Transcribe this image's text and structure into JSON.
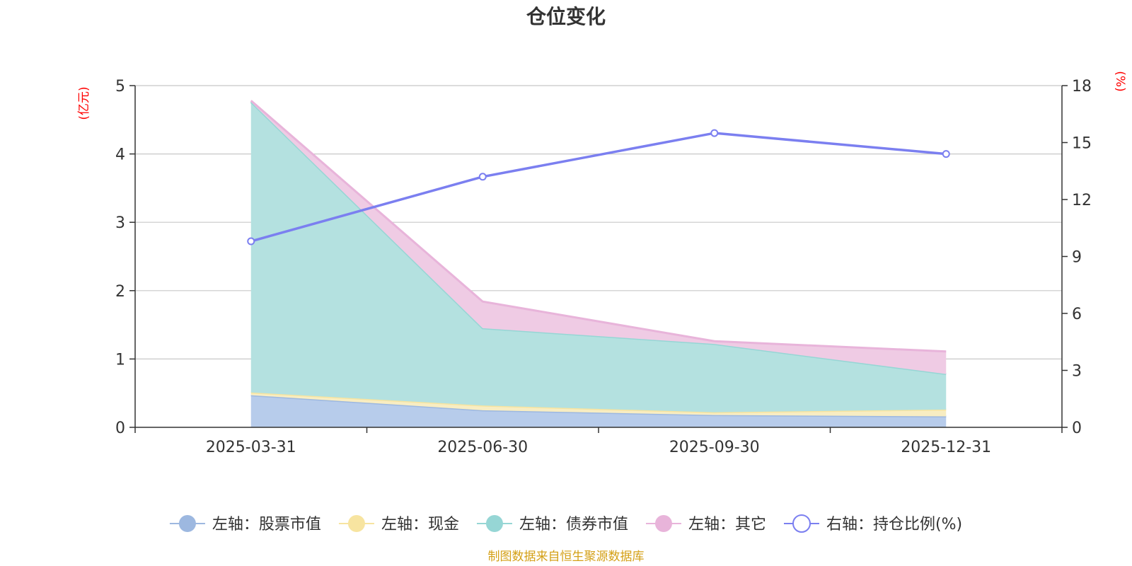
{
  "chart_data": {
    "type": "area",
    "title": "仓位变化",
    "x": [
      "2025-03-31",
      "2025-06-30",
      "2025-09-30",
      "2025-12-31"
    ],
    "left_axis": {
      "unit_label": "(亿元)",
      "ylim": [
        0,
        5
      ],
      "ticks": [
        0,
        1,
        2,
        3,
        4,
        5
      ]
    },
    "right_axis": {
      "unit_label": "(%)",
      "ylim": [
        0,
        18
      ],
      "ticks": [
        0,
        3,
        6,
        9,
        12,
        15,
        18
      ]
    },
    "series": [
      {
        "name": "左轴：股票市值",
        "axis": "left",
        "kind": "stacked-area",
        "color": "#9db8e0",
        "fill": "#b7cceb",
        "values": [
          0.47,
          0.25,
          0.18,
          0.16
        ]
      },
      {
        "name": "左轴：现金",
        "axis": "left",
        "kind": "stacked-area",
        "color": "#f7e4a0",
        "fill": "#f8edc2",
        "values": [
          0.04,
          0.07,
          0.04,
          0.1
        ]
      },
      {
        "name": "左轴：债券市值",
        "axis": "left",
        "kind": "stacked-area",
        "color": "#96d6d5",
        "fill": "#b4e1e0",
        "values": [
          4.25,
          1.13,
          1.0,
          0.52
        ]
      },
      {
        "name": "左轴：其它",
        "axis": "left",
        "kind": "stacked-area",
        "color": "#e8b4da",
        "fill": "#efcbe4",
        "values": [
          0.02,
          0.39,
          0.04,
          0.33
        ]
      },
      {
        "name": "右轴：持仓比例(%)",
        "axis": "right",
        "kind": "line",
        "color": "#7b7ff0",
        "values": [
          9.8,
          13.2,
          15.5,
          14.4
        ]
      }
    ],
    "grid": true,
    "legend_position": "bottom"
  },
  "source_note": "制图数据来自恒生聚源数据库",
  "colors": {
    "title": "#333333",
    "axis": "#333333",
    "grid": "#c8c8c8",
    "unit_label": "#ff0000",
    "source_note": "#d4a017"
  }
}
